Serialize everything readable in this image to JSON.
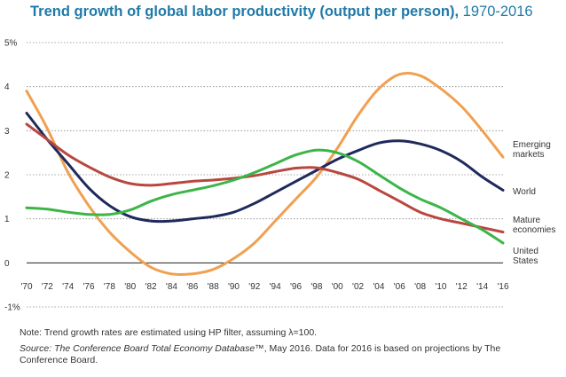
{
  "header": {
    "title_bold": "Trend growth of global labor productivity (output per person),",
    "title_range": "1970-2016"
  },
  "chart_data": {
    "type": "line",
    "title": "Trend growth of global labor productivity (output per person), 1970-2016",
    "xlabel": "",
    "ylabel": "",
    "xlim": [
      1970,
      2016
    ],
    "ylim": [
      -1,
      5
    ],
    "y_ticks": [
      {
        "value": 5,
        "label": "5%"
      },
      {
        "value": 4,
        "label": "4"
      },
      {
        "value": 3,
        "label": "3"
      },
      {
        "value": 2,
        "label": "2"
      },
      {
        "value": 1,
        "label": "1"
      },
      {
        "value": 0,
        "label": "0"
      },
      {
        "value": -1,
        "label": "-1%"
      }
    ],
    "x_ticks": [
      {
        "value": 1970,
        "label": "'70"
      },
      {
        "value": 1972,
        "label": "'72"
      },
      {
        "value": 1974,
        "label": "'74"
      },
      {
        "value": 1976,
        "label": "'76"
      },
      {
        "value": 1978,
        "label": "'78"
      },
      {
        "value": 1980,
        "label": "'80"
      },
      {
        "value": 1982,
        "label": "'82"
      },
      {
        "value": 1984,
        "label": "'84"
      },
      {
        "value": 1986,
        "label": "'86"
      },
      {
        "value": 1988,
        "label": "'88"
      },
      {
        "value": 1990,
        "label": "'90"
      },
      {
        "value": 1992,
        "label": "'92"
      },
      {
        "value": 1994,
        "label": "'94"
      },
      {
        "value": 1996,
        "label": "'96"
      },
      {
        "value": 1998,
        "label": "'98"
      },
      {
        "value": 2000,
        "label": "'00"
      },
      {
        "value": 2002,
        "label": "'02"
      },
      {
        "value": 2004,
        "label": "'04"
      },
      {
        "value": 2006,
        "label": "'06"
      },
      {
        "value": 2008,
        "label": "'08"
      },
      {
        "value": 2010,
        "label": "'10"
      },
      {
        "value": 2012,
        "label": "'12"
      },
      {
        "value": 2014,
        "label": "'14"
      },
      {
        "value": 2016,
        "label": "'16"
      }
    ],
    "grid": "horizontal dotted",
    "series": [
      {
        "name": "Emerging markets",
        "legend_lines": [
          "Emerging",
          "markets"
        ],
        "color": "#f0a050",
        "x": [
          1970,
          1972,
          1974,
          1976,
          1978,
          1980,
          1982,
          1984,
          1986,
          1988,
          1990,
          1992,
          1994,
          1996,
          1998,
          2000,
          2002,
          2004,
          2006,
          2008,
          2010,
          2012,
          2014,
          2016
        ],
        "y": [
          3.9,
          3.05,
          2.05,
          1.3,
          0.7,
          0.25,
          -0.1,
          -0.25,
          -0.25,
          -0.15,
          0.1,
          0.45,
          0.95,
          1.45,
          1.95,
          2.6,
          3.35,
          3.95,
          4.28,
          4.25,
          3.95,
          3.55,
          3.0,
          2.4
        ]
      },
      {
        "name": "World",
        "legend_lines": [
          "World"
        ],
        "color": "#1f2a5c",
        "x": [
          1970,
          1972,
          1974,
          1976,
          1978,
          1980,
          1982,
          1984,
          1986,
          1988,
          1990,
          1992,
          1994,
          1996,
          1998,
          2000,
          2002,
          2004,
          2006,
          2008,
          2010,
          2012,
          2014,
          2016
        ],
        "y": [
          3.4,
          2.8,
          2.25,
          1.7,
          1.3,
          1.05,
          0.95,
          0.95,
          1.0,
          1.05,
          1.15,
          1.35,
          1.6,
          1.85,
          2.1,
          2.35,
          2.55,
          2.72,
          2.77,
          2.7,
          2.55,
          2.3,
          1.95,
          1.65
        ]
      },
      {
        "name": "Mature economies",
        "legend_lines": [
          "Mature",
          "economies"
        ],
        "color": "#b8483f",
        "x": [
          1970,
          1972,
          1974,
          1976,
          1978,
          1980,
          1982,
          1984,
          1986,
          1988,
          1990,
          1992,
          1994,
          1996,
          1998,
          2000,
          2002,
          2004,
          2006,
          2008,
          2010,
          2012,
          2014,
          2016
        ],
        "y": [
          3.15,
          2.8,
          2.45,
          2.18,
          1.95,
          1.8,
          1.76,
          1.8,
          1.85,
          1.88,
          1.92,
          1.98,
          2.07,
          2.15,
          2.16,
          2.05,
          1.9,
          1.65,
          1.4,
          1.15,
          1.0,
          0.9,
          0.8,
          0.7
        ]
      },
      {
        "name": "United States",
        "legend_lines": [
          "United",
          "States"
        ],
        "color": "#3cb548",
        "x": [
          1970,
          1972,
          1974,
          1976,
          1978,
          1980,
          1982,
          1984,
          1986,
          1988,
          1990,
          1992,
          1994,
          1996,
          1998,
          2000,
          2002,
          2004,
          2006,
          2008,
          2010,
          2012,
          2014,
          2016
        ],
        "y": [
          1.25,
          1.22,
          1.15,
          1.1,
          1.1,
          1.2,
          1.4,
          1.55,
          1.65,
          1.75,
          1.88,
          2.05,
          2.25,
          2.45,
          2.56,
          2.5,
          2.3,
          2.0,
          1.7,
          1.45,
          1.25,
          1.0,
          0.75,
          0.45
        ]
      }
    ]
  },
  "footnotes": {
    "note": "Note: Trend growth rates are estimated using HP filter, assuming λ=100.",
    "source_label": "Source:",
    "source_italic": "The Conference Board Total Economy Database™",
    "source_rest": ", May 2016. Data for 2016 is based on projections by The Conference Board."
  }
}
